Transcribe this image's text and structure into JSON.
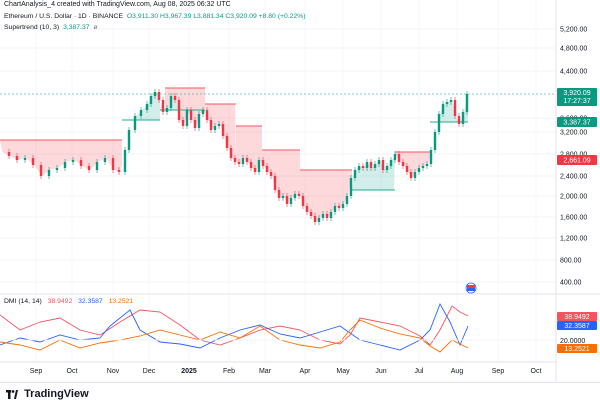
{
  "header": {
    "caption": "ChartAnalysis_4 created with TradingView.com, Aug 08, 2025 06:32 UTC"
  },
  "legend": {
    "symbol": "Ethereum / U.S. Dollar · 1D · BINANCE",
    "ohlc": "O3,911.30 H3,967.39 L3,881.34 C3,920.09 +8.80 (+0.22%)",
    "supertrend_label": "Supertrend (10, 3)",
    "supertrend_value": "3,387.37",
    "supertrend_icon": "ø"
  },
  "dmi": {
    "label": "DMI (14, 14)",
    "di_plus": "38.9492",
    "di_minus": "32.3587",
    "adx": "13.2521"
  },
  "price_scale": [
    "5,200.00",
    "4,800.00",
    "4,400.00",
    "3,600.00",
    "3,200.00",
    "2,800.00",
    "2,400.00",
    "2,000.00",
    "1,600.00",
    "1,200.00",
    "800.00",
    "400.00"
  ],
  "price_badges": {
    "last_price": "3,920.09",
    "countdown": "17:27:37",
    "supertrend": "3,387.37",
    "resistance": "2,661.09"
  },
  "dmi_scale": [
    "20.0000"
  ],
  "dmi_badges": {
    "di_plus": "38.9492",
    "di_minus": "32.3587",
    "adx": "13.2521"
  },
  "time_axis": [
    "Sep",
    "Oct",
    "Nov",
    "Dec",
    "2025",
    "Feb",
    "Mar",
    "Apr",
    "May",
    "Jun",
    "Jul",
    "Aug",
    "Sep",
    "Oct"
  ],
  "footer": {
    "brand": "TradingView"
  },
  "colors": {
    "up": "#089981",
    "down": "#f23645",
    "supertrend_up": "#22ab94",
    "supertrend_down": "#f7525f",
    "di_plus": "#f7525f",
    "di_minus": "#2962ff",
    "adx": "#ff6d00"
  },
  "icons": {
    "events": "flag-icon"
  }
}
